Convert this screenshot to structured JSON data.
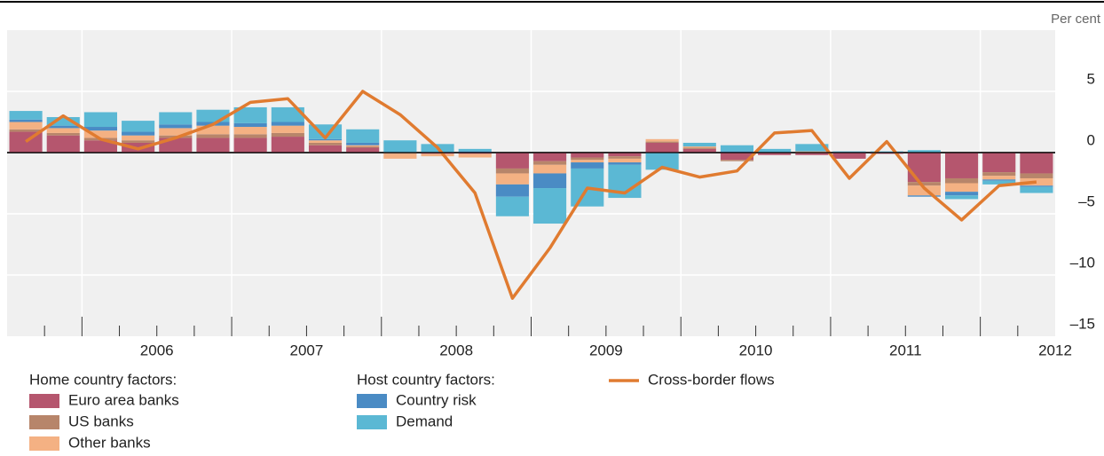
{
  "chart_data": {
    "type": "bar_line",
    "unit_label": "Per cent",
    "categories": [
      null,
      null,
      null,
      null,
      null,
      null,
      null,
      null,
      null,
      null,
      null,
      null,
      null,
      null,
      null,
      null,
      null,
      null,
      null,
      null,
      null,
      null,
      null,
      null,
      null,
      null,
      null,
      null
    ],
    "year_labels": [
      "2006",
      "2007",
      "2008",
      "2009",
      "2010",
      "2011",
      "2012"
    ],
    "legend_headings": [
      "Home country factors:",
      "Host country factors:"
    ],
    "series": [
      {
        "name": "Euro area banks",
        "type": "bar",
        "color": "#b5566e",
        "values": [
          1.7,
          1.4,
          1.0,
          0.8,
          1.2,
          1.2,
          1.2,
          1.3,
          0.6,
          0.4,
          0,
          -0.1,
          -0.1,
          -1.3,
          -0.7,
          -0.4,
          -0.3,
          0.8,
          0.3,
          -0.6,
          -0.2,
          -0.2,
          -0.5,
          -0.1,
          -2.4,
          -2.1,
          -1.6,
          -1.7
        ]
      },
      {
        "name": "US banks",
        "type": "bar",
        "color": "#b7856a",
        "values": [
          0.2,
          0.2,
          0.2,
          0.2,
          0.2,
          0.3,
          0.3,
          0.3,
          0.2,
          0.1,
          -0.1,
          0,
          0,
          -0.4,
          -0.3,
          -0.2,
          -0.2,
          0.1,
          0.1,
          -0.1,
          0,
          0,
          0,
          0,
          -0.3,
          -0.4,
          -0.3,
          -0.4
        ]
      },
      {
        "name": "Other banks",
        "type": "bar",
        "color": "#f4b183",
        "values": [
          0.6,
          0.4,
          0.6,
          0.4,
          0.6,
          0.7,
          0.6,
          0.6,
          0.2,
          0.1,
          -0.4,
          -0.2,
          -0.3,
          -0.9,
          -0.7,
          -0.2,
          -0.3,
          0.2,
          0.1,
          0,
          0,
          0.1,
          0,
          0,
          -0.8,
          -0.7,
          -0.3,
          -0.6
        ]
      },
      {
        "name": "Country risk",
        "type": "bar",
        "color": "#4a8bc4",
        "values": [
          0.2,
          0.2,
          0.3,
          0.3,
          0.3,
          0.3,
          0.3,
          0.3,
          0.1,
          0.2,
          0,
          0,
          0.1,
          -1.0,
          -1.2,
          -0.5,
          -0.2,
          0,
          0,
          0.1,
          0,
          0,
          0,
          0,
          -0.1,
          -0.3,
          -0.1,
          -0.1
        ]
      },
      {
        "name": "Demand",
        "type": "bar",
        "color": "#5bb8d4",
        "values": [
          0.7,
          0.7,
          1.2,
          0.9,
          1.0,
          1.0,
          1.3,
          1.2,
          1.2,
          1.1,
          1.0,
          0.7,
          0.2,
          -1.6,
          -2.9,
          -3.1,
          -2.7,
          -1.4,
          0.3,
          0.5,
          0.3,
          0.6,
          0.1,
          0.1,
          0.2,
          -0.3,
          -0.3,
          -0.5
        ]
      },
      {
        "name": "Cross-border flows",
        "type": "line",
        "color": "#e07b30",
        "values": [
          0.9,
          3.0,
          1.1,
          0.3,
          1.2,
          2.3,
          4.1,
          4.4,
          1.2,
          5.0,
          3.1,
          0.4,
          -3.3,
          -11.9,
          -7.8,
          -2.9,
          -3.3,
          -1.2,
          -2.0,
          -1.5,
          1.6,
          1.8,
          -2.1,
          0.9,
          -2.9,
          -5.5,
          -2.7,
          -2.4
        ]
      }
    ],
    "ylim": [
      -15,
      10
    ],
    "yticks": [
      5,
      0,
      {
        "value": -5,
        "label": "–5"
      },
      {
        "value": -10,
        "label": "–10"
      },
      {
        "value": -15,
        "label": "–15"
      }
    ],
    "grid": true
  }
}
